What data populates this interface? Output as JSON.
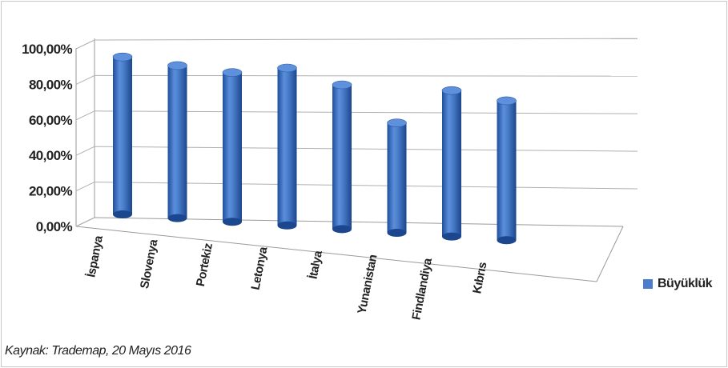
{
  "chart_data": {
    "type": "bar",
    "categories": [
      "İspanya",
      "Slovenya",
      "Portekiz",
      "Letonya",
      "İtalya",
      "Yunanistan",
      "Findlandiya",
      "Kıbrıs"
    ],
    "series": [
      {
        "name": "Büyüklük",
        "values": [
          0.96,
          0.93,
          0.91,
          0.96,
          0.88,
          0.67,
          0.89,
          0.85
        ]
      }
    ],
    "y_ticks": [
      "0,00%",
      "20,00%",
      "40,00%",
      "60,00%",
      "80,00%",
      "100,00%"
    ],
    "ylim": [
      0,
      1
    ],
    "grid": true,
    "legend_position": "right",
    "bar_color": "#4a7ecb"
  },
  "legend": {
    "label": "Büyüklük"
  },
  "source": "Kaynak: Trademap, 20 Mayıs 2016"
}
